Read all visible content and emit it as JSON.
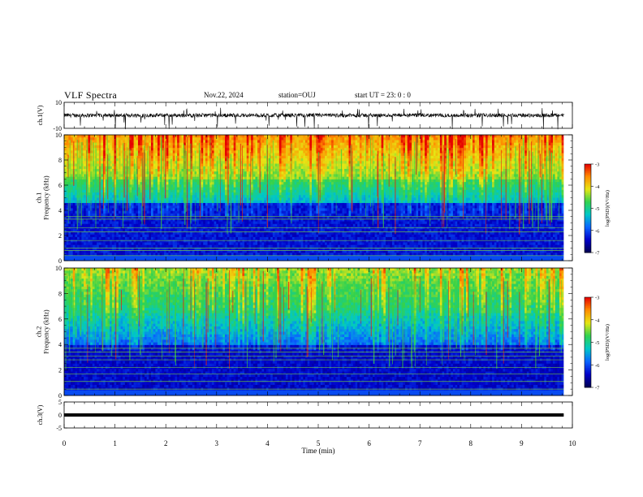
{
  "header": {
    "title": "VLF Spectra",
    "date": "Nov.22, 2024",
    "station": "station=OUJ",
    "start_ut": "start  UT =   23: 0  : 0"
  },
  "colors": {
    "background": "#ffffff",
    "colormap": [
      "#000050",
      "#0000c8",
      "#0a64ff",
      "#00c8c8",
      "#32d250",
      "#e6e614",
      "#ff8c00",
      "#e60000",
      "#ffffff"
    ]
  },
  "chart_data": [
    {
      "type": "line",
      "panel": "ch.1 waveform",
      "ylabel": "ch.1(V)",
      "ylim": [
        -10,
        10
      ],
      "ytick_labels": [
        "10",
        "-10"
      ],
      "baseline_level": 0,
      "typical_fluctuation": 1.5,
      "x_range_min": [
        0,
        9.83
      ]
    },
    {
      "type": "heatmap",
      "panel": "ch.1 spectrogram",
      "ylabel": "ch.1\nFrequency (kHz)",
      "ylim": [
        0,
        10
      ],
      "ytick_labels": [
        "0",
        "2",
        "4",
        "6",
        "8",
        "10"
      ],
      "x_range_min": [
        0,
        9.83
      ],
      "color_scale": {
        "label": "log(PSD)(V²/Hz)",
        "range": [
          -7,
          -3
        ],
        "tick_labels": [
          "-3",
          "-4",
          "-5",
          "-6",
          "-7"
        ]
      },
      "description_bands_khz": {
        "quiet_low": [
          0.5,
          4.5
        ],
        "mid": [
          4.5,
          6.5
        ],
        "intense_high": [
          6.5,
          10
        ]
      },
      "horizontal_lines_khz": [
        0.4,
        0.8,
        1.0,
        1.6,
        2.3,
        2.6,
        3.3,
        3.5
      ]
    },
    {
      "type": "heatmap",
      "panel": "ch.2 spectrogram",
      "ylabel": "ch.2\nFrequency (kHz)",
      "ylim": [
        0,
        10
      ],
      "ytick_labels": [
        "0",
        "2",
        "4",
        "6",
        "8",
        "10"
      ],
      "x_range_min": [
        0,
        9.83
      ],
      "color_scale": {
        "label": "log(PSD)(V²/Hz)",
        "range": [
          -7,
          -3
        ],
        "tick_labels": [
          "-3",
          "-4",
          "-5",
          "-6",
          "-7"
        ]
      },
      "horizontal_lines_khz": [
        0.5,
        1.1,
        1.7,
        2.2,
        2.8,
        3.1,
        3.4,
        3.7
      ]
    },
    {
      "type": "line",
      "panel": "ch.3 waveform",
      "ylabel": "ch.3(V)",
      "ylim": [
        -5,
        5
      ],
      "ytick_labels": [
        "5",
        "0",
        "-5"
      ],
      "x": [
        0,
        9.83
      ],
      "y": [
        0,
        0
      ]
    }
  ],
  "x_axis": {
    "label": "Time  (min)",
    "tick_labels": [
      "0",
      "1",
      "2",
      "3",
      "4",
      "5",
      "6",
      "7",
      "8",
      "9",
      "10"
    ],
    "range": [
      0,
      10
    ]
  }
}
